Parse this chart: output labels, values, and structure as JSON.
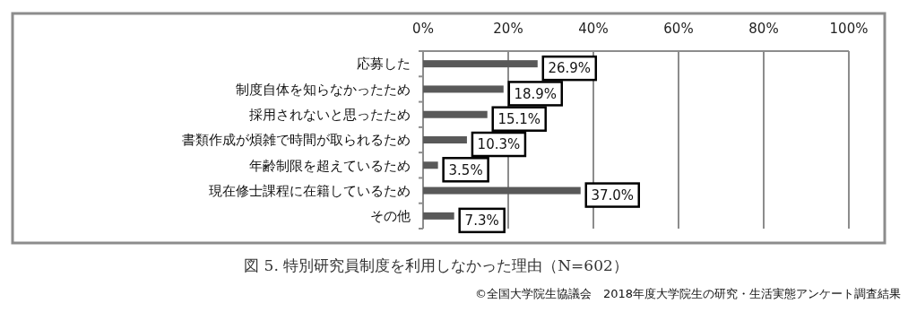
{
  "chart_data": {
    "type": "bar",
    "orientation": "horizontal",
    "title": "図 5. 特別研究員制度を利用しなかった理由（N=602）",
    "annotations": [
      "©全国大学院生協議会　2018年度大学院生の研究・生活実態アンケート調査結果"
    ],
    "categories": [
      "応募した",
      "制度自体を知らなかったため",
      "採用されないと思ったため",
      "書類作成が煩雑で時間が取られるため",
      "年齢制限を超えているため",
      "現在修士課程に在籍しているため",
      "その他"
    ],
    "values": [
      26.9,
      18.9,
      15.1,
      10.3,
      3.5,
      37.0,
      7.3
    ],
    "value_labels": [
      "26.9%",
      "18.9%",
      "15.1%",
      "10.3%",
      "3.5%",
      "37.0%",
      "7.3%"
    ],
    "color": "#595959",
    "xlim": [
      0,
      100
    ],
    "xticks": [
      {
        "value": 0,
        "label": "0%"
      },
      {
        "value": 20,
        "label": "20%"
      },
      {
        "value": 40,
        "label": "40%"
      },
      {
        "value": 60,
        "label": "60%"
      },
      {
        "value": 80,
        "label": "80%"
      },
      {
        "value": 100,
        "label": "100%"
      }
    ],
    "grid": "x"
  }
}
